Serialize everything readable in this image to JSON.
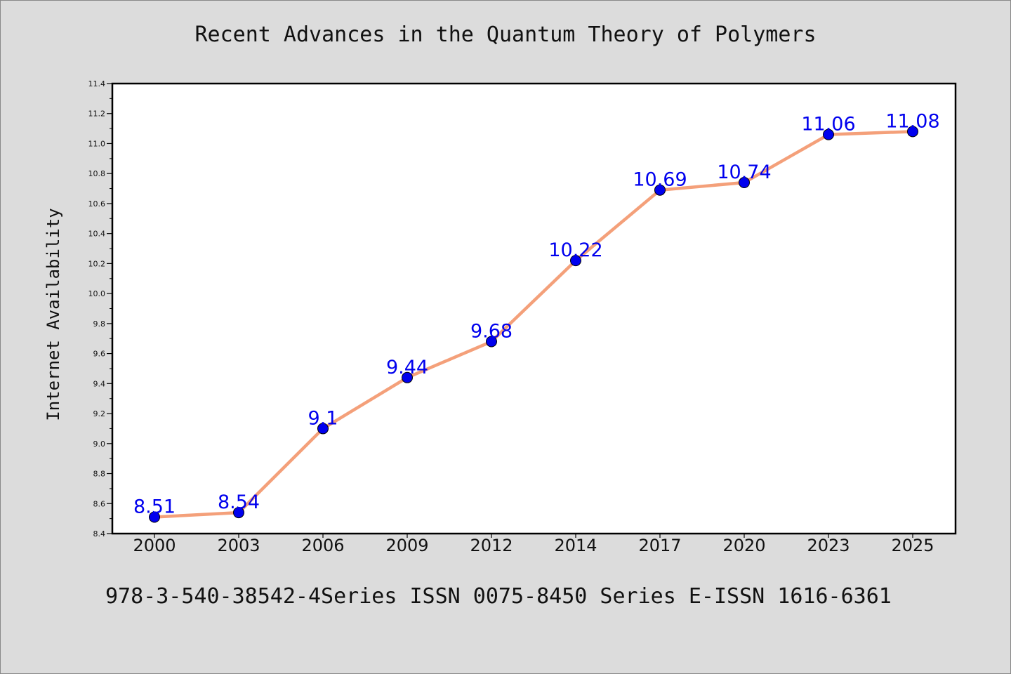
{
  "chart_data": {
    "type": "line",
    "title": "Recent Advances in the Quantum Theory of Polymers",
    "xlabel": "",
    "ylabel": "Internet Availability",
    "categories": [
      "2000",
      "2003",
      "2006",
      "2009",
      "2012",
      "2014",
      "2017",
      "2020",
      "2023",
      "2025"
    ],
    "series": [
      {
        "values": [
          8.51,
          8.54,
          9.1,
          9.44,
          9.68,
          10.22,
          10.69,
          10.74,
          11.06,
          11.08
        ],
        "data_labels": [
          "8.51",
          "8.54",
          "9.1",
          "9.44",
          "9.68",
          "10.22",
          "10.69",
          "10.74",
          "11.06",
          "11.08"
        ]
      }
    ],
    "ylim": [
      8.4,
      11.4
    ],
    "yticks": [
      "8.4",
      "8.6",
      "8.8",
      "9.0",
      "9.2",
      "9.4",
      "9.6",
      "9.8",
      "10.0",
      "10.2",
      "10.4",
      "10.6",
      "10.8",
      "11.0",
      "11.2",
      "11.4"
    ],
    "grid": false,
    "legend": "none",
    "colors": {
      "line": "#f4a07a",
      "marker": "#0000ee",
      "data_label": "#0000ee",
      "background": "#dcdcdc",
      "plot_background": "#ffffff"
    }
  },
  "footer_text": "978-3-540-38542-4Series ISSN 0075-8450 Series E-ISSN 1616-6361"
}
